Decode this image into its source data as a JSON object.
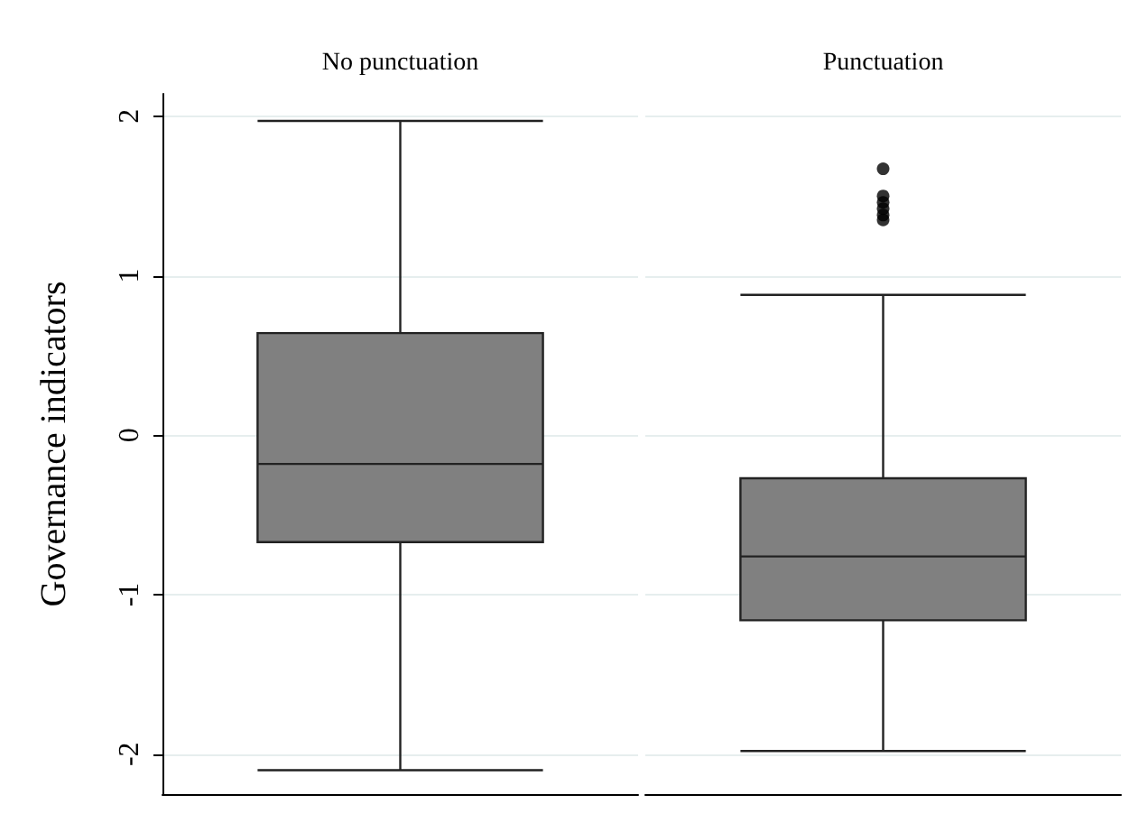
{
  "chart_data": {
    "type": "box",
    "ylabel": "Governance indicators",
    "categories": [
      "No punctuation",
      "Punctuation"
    ],
    "series": [
      {
        "color": "#808080",
        "boxes": [
          {
            "low": -2.1,
            "q1": -0.67,
            "median": -0.18,
            "q3": 0.64,
            "high": 1.97
          },
          {
            "low": -1.98,
            "q1": -1.16,
            "median": -0.76,
            "q3": -0.27,
            "high": 0.88,
            "outliers": [
              1.67,
              1.5,
              1.46,
              1.42,
              1.38,
              1.35
            ]
          }
        ]
      }
    ],
    "ylim": [
      -2.25,
      2.14
    ],
    "yticks": [
      -2,
      -1,
      0,
      1,
      2
    ],
    "grid": "y"
  }
}
